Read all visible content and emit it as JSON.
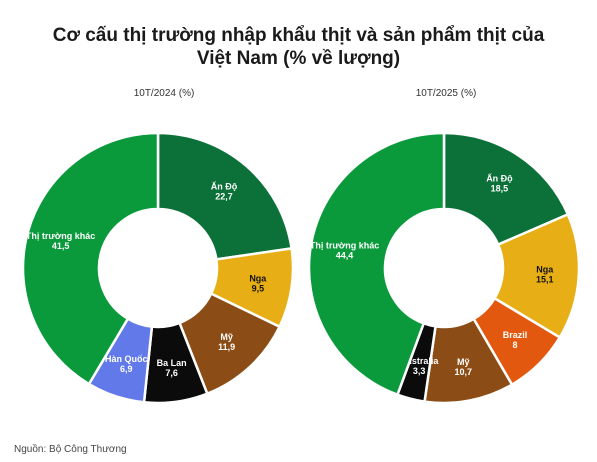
{
  "title_line1": "Cơ cấu thị trường nhập khẩu thịt và sản phẩm thịt của",
  "title_line2": "Việt Nam (% về lượng)",
  "source": "Nguồn: Bộ Công Thương",
  "chart_data": [
    {
      "type": "pie",
      "title": "10T/2024 (%)",
      "labels": [
        "Ấn Độ",
        "Nga",
        "Mỹ",
        "Ba Lan",
        "Hàn Quốc",
        "Thị trường khác"
      ],
      "values": [
        22.7,
        9.5,
        11.9,
        7.6,
        6.9,
        41.5
      ],
      "value_labels": [
        "22,7",
        "9,5",
        "11,9",
        "7,6",
        "6,9",
        "41,5"
      ],
      "colors": [
        "#0c7138",
        "#e7ae15",
        "#8b4d15",
        "#0b0b0b",
        "#6279e9",
        "#0a9a3b"
      ],
      "label_colors": [
        "#ffffff",
        "#111111",
        "#ffffff",
        "#ffffff",
        "#ffffff",
        "#ffffff"
      ]
    },
    {
      "type": "pie",
      "title": "10T/2025 (%)",
      "labels": [
        "Ấn Độ",
        "Nga",
        "Brazil",
        "Mỹ",
        "Australia",
        "Thị trường khác"
      ],
      "values": [
        18.5,
        15.1,
        8,
        10.7,
        3.3,
        44.4
      ],
      "value_labels": [
        "18,5",
        "15,1",
        "8",
        "10,7",
        "3,3",
        "44,4"
      ],
      "colors": [
        "#0c7138",
        "#e7ae15",
        "#e2580e",
        "#8b4d15",
        "#0b0b0b",
        "#0a9a3b"
      ],
      "label_colors": [
        "#ffffff",
        "#111111",
        "#ffffff",
        "#ffffff",
        "#ffffff",
        "#ffffff"
      ]
    }
  ]
}
